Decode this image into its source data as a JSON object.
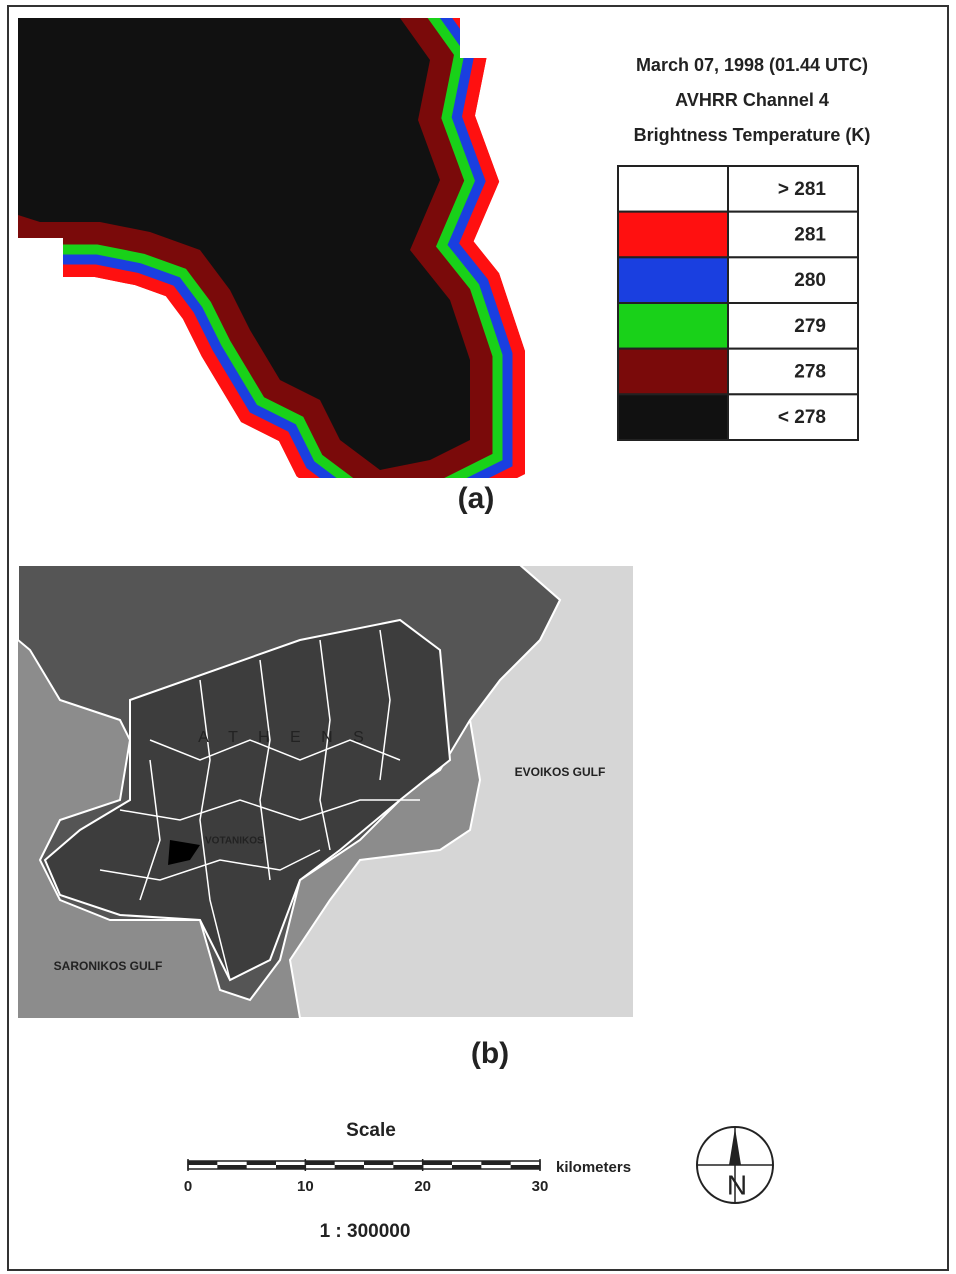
{
  "panel_a": {
    "title_lines": [
      "March 07, 1998 (01.44 UTC)",
      "AVHRR Channel 4",
      "Brightness Temperature (K)"
    ],
    "legend": [
      {
        "color": "#ffffff",
        "label": "> 281"
      },
      {
        "color": "#ff1010",
        "label": "281"
      },
      {
        "color": "#1a3fe0",
        "label": "280"
      },
      {
        "color": "#19d119",
        "label": "279"
      },
      {
        "color": "#7a0a0a",
        "label": "278"
      },
      {
        "color": "#111111",
        "label": "< 278"
      }
    ],
    "caption": "(a)"
  },
  "panel_b": {
    "city": "A T H E N S",
    "east_gulf": "EVOIKOS GULF",
    "site": "VOTANIKOS",
    "west_gulf": "SARONIKOS GULF",
    "caption": "(b)"
  },
  "scale": {
    "title": "Scale",
    "ticks": [
      0,
      10,
      20,
      30
    ],
    "unit": "kilometers",
    "ratio": "1 : 300000"
  },
  "compass": "N"
}
